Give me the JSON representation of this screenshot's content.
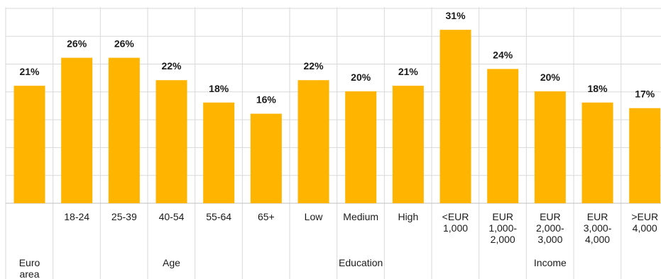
{
  "chart_data": {
    "type": "bar",
    "categories": [
      [
        "",
        ""
      ],
      [
        "18-24"
      ],
      [
        "25-39"
      ],
      [
        "40-54"
      ],
      [
        "55-64"
      ],
      [
        "65+"
      ],
      [
        "Low"
      ],
      [
        "Medium"
      ],
      [
        "High"
      ],
      [
        "<EUR",
        "1,000"
      ],
      [
        "EUR",
        "1,000-",
        "2,000"
      ],
      [
        "EUR",
        "2,000-",
        "3,000"
      ],
      [
        "EUR",
        "3,000-",
        "4,000"
      ],
      [
        ">EUR",
        "4,000"
      ]
    ],
    "values": [
      21,
      26,
      26,
      22,
      18,
      16,
      22,
      20,
      21,
      31,
      24,
      20,
      18,
      17
    ],
    "value_labels": [
      "21%",
      "26%",
      "26%",
      "22%",
      "18%",
      "16%",
      "22%",
      "20%",
      "21%",
      "31%",
      "24%",
      "20%",
      "18%",
      "17%"
    ],
    "groups": [
      {
        "label": [
          "Euro",
          "area"
        ],
        "start": 0,
        "end": 0
      },
      {
        "label": [
          "Age"
        ],
        "start": 1,
        "end": 5
      },
      {
        "label": [
          "Education"
        ],
        "start": 6,
        "end": 8
      },
      {
        "label": [
          "Income"
        ],
        "start": 9,
        "end": 13
      }
    ],
    "bar_color": "#FFB400",
    "grid": true,
    "ylim": [
      0,
      36
    ],
    "title": "",
    "xlabel": "",
    "ylabel": ""
  }
}
